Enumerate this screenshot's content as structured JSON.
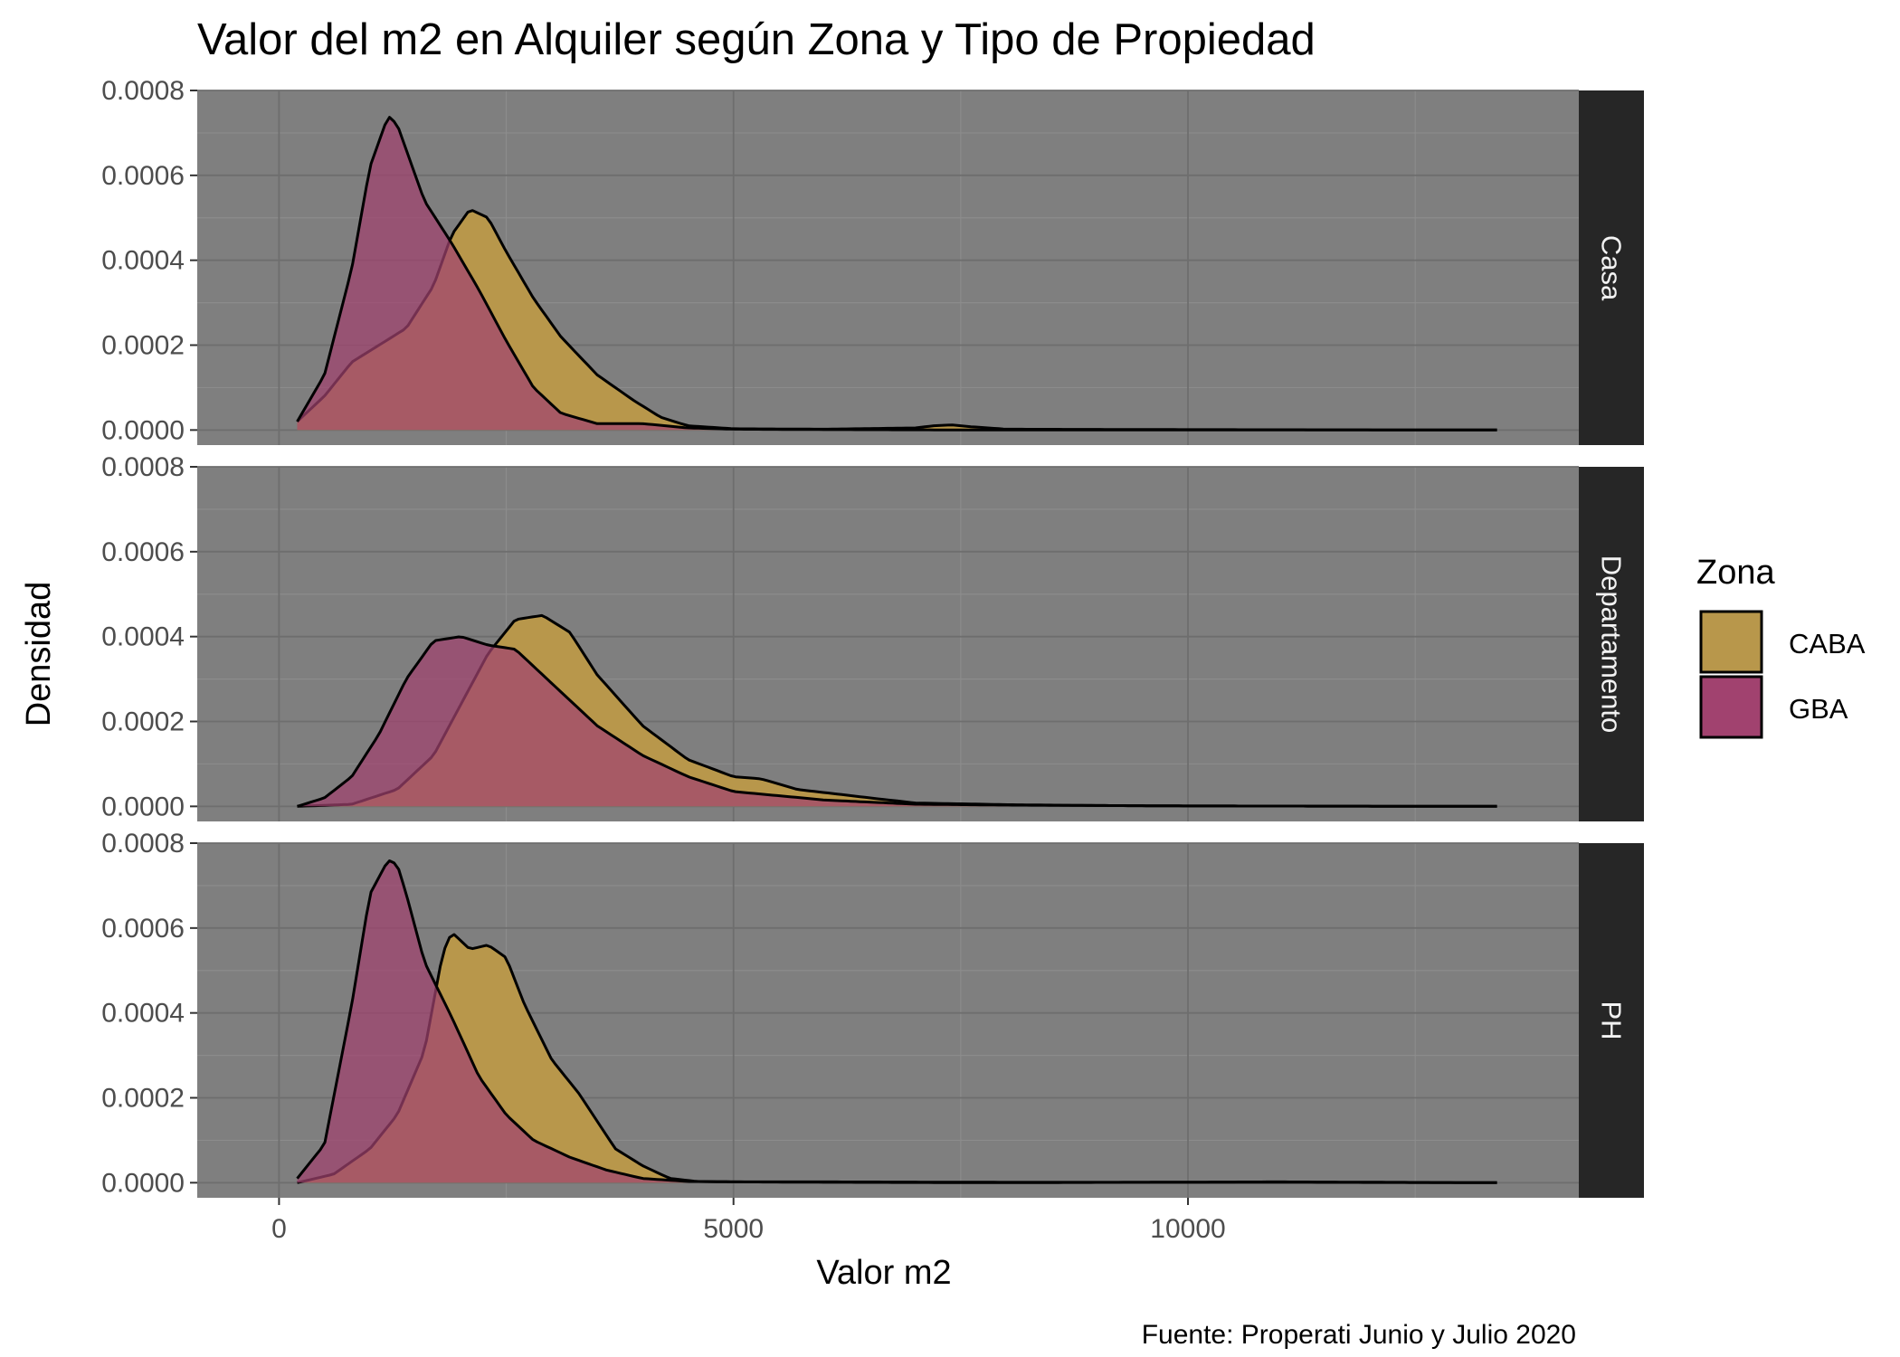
{
  "chart_data": {
    "type": "area",
    "title": "Valor del m2 en Alquiler según Zona y Tipo de Propiedad",
    "xlabel": "Valor m2",
    "ylabel": "Densidad",
    "caption": "Fuente: Properati Junio y Julio 2020",
    "xlim": [
      -900,
      14300
    ],
    "ylim": [
      -3.55e-05,
      0.0008
    ],
    "x_ticks": [
      0,
      5000,
      10000
    ],
    "x_tick_labels": [
      "0",
      "5000",
      "10000"
    ],
    "y_ticks": [
      0,
      0.0002,
      0.0004,
      0.0006,
      0.0008
    ],
    "y_tick_labels": [
      "0.0000",
      "0.0002",
      "0.0004",
      "0.0006",
      "0.0008"
    ],
    "grid": true,
    "legend": {
      "title": "Zona",
      "position": "right",
      "entries": [
        {
          "label": "CABA",
          "color": "#b8974b"
        },
        {
          "label": "GBA",
          "color": "#a1426f"
        }
      ]
    },
    "colors": {
      "panel_bg": "#7f7f7f",
      "strip_bg": "#262626",
      "CABA": "#b8974b",
      "GBA": "#a1426f",
      "overlap": "#c45866"
    },
    "facets": [
      {
        "label": "Casa",
        "series": [
          {
            "name": "CABA",
            "x": [
              200,
              500,
              800,
              1100,
              1400,
              1700,
              1900,
              2100,
              2300,
              2500,
              2800,
              3100,
              3500,
              3900,
              4200,
              4500,
              5000,
              6000,
              7000,
              7200,
              7400,
              7600,
              8000,
              10000,
              13400
            ],
            "y": [
              2e-05,
              8e-05,
              0.00016,
              0.0002,
              0.00024,
              0.00034,
              0.00046,
              0.00052,
              0.0005,
              0.00042,
              0.00031,
              0.00022,
              0.00013,
              7e-05,
              3e-05,
              1e-05,
              3e-06,
              2e-06,
              5e-06,
              1e-05,
              1.2e-05,
              8e-06,
              2e-06,
              1e-06,
              0.0
            ]
          },
          {
            "name": "GBA",
            "x": [
              200,
              500,
              800,
              1000,
              1200,
              1300,
              1400,
              1600,
              1900,
              2200,
              2500,
              2800,
              3100,
              3500,
              4000,
              4500,
              5000,
              6000,
              8000,
              10000,
              13400
            ],
            "y": [
              2e-05,
              0.00013,
              0.00038,
              0.00062,
              0.00074,
              0.00072,
              0.00066,
              0.00054,
              0.00044,
              0.00033,
              0.00021,
              0.0001,
              4e-05,
              1.5e-05,
              1.5e-05,
              5e-06,
              2e-06,
              1e-06,
              0.0,
              0.0,
              0.0
            ]
          }
        ]
      },
      {
        "label": "Departamento",
        "series": [
          {
            "name": "CABA",
            "x": [
              200,
              800,
              1300,
              1700,
              2000,
              2300,
              2600,
              2900,
              3200,
              3500,
              4000,
              4500,
              5000,
              5300,
              5700,
              6500,
              7000,
              8000,
              9000,
              10000,
              13400
            ],
            "y": [
              0.0,
              5e-06,
              4e-05,
              0.00012,
              0.00024,
              0.00036,
              0.00044,
              0.00045,
              0.00041,
              0.00031,
              0.00019,
              0.00011,
              7e-05,
              6.5e-05,
              4e-05,
              2e-05,
              8e-06,
              4e-06,
              2e-06,
              1e-06,
              0.0
            ]
          },
          {
            "name": "GBA",
            "x": [
              200,
              500,
              800,
              1100,
              1400,
              1700,
              2000,
              2300,
              2600,
              3000,
              3500,
              4000,
              4500,
              5000,
              5500,
              6000,
              6500,
              7000,
              8000,
              9000,
              10000,
              13400
            ],
            "y": [
              0.0,
              2e-05,
              7e-05,
              0.00017,
              0.0003,
              0.00039,
              0.0004,
              0.00038,
              0.00037,
              0.00029,
              0.00019,
              0.00012,
              7e-05,
              3.5e-05,
              2.5e-05,
              1.5e-05,
              1e-05,
              5e-06,
              3e-06,
              2e-06,
              1e-06,
              0.0
            ]
          }
        ]
      },
      {
        "label": "PH",
        "series": [
          {
            "name": "CABA",
            "x": [
              200,
              600,
              1000,
              1300,
              1600,
              1800,
              1900,
              2100,
              2300,
              2500,
              2700,
              3000,
              3300,
              3700,
              4000,
              4300,
              4600,
              5000,
              6000,
              8000,
              11000,
              13400
            ],
            "y": [
              0.0,
              2e-05,
              8e-05,
              0.00016,
              0.00031,
              0.00054,
              0.00059,
              0.00055,
              0.00056,
              0.00053,
              0.00042,
              0.00029,
              0.00021,
              8e-05,
              4e-05,
              1e-05,
              3e-06,
              2e-06,
              2e-06,
              1e-06,
              1e-06,
              0.0
            ]
          },
          {
            "name": "GBA",
            "x": [
              200,
              500,
              800,
              1000,
              1200,
              1300,
              1400,
              1600,
              1900,
              2200,
              2500,
              2800,
              3000,
              3200,
              3600,
              4000,
              4500,
              5000,
              6000,
              8000,
              11000,
              13400
            ],
            "y": [
              1e-05,
              9e-05,
              0.00042,
              0.00068,
              0.00076,
              0.00075,
              0.00068,
              0.00052,
              0.00039,
              0.00025,
              0.00016,
              0.0001,
              8e-05,
              6e-05,
              3e-05,
              1e-05,
              3e-06,
              2e-06,
              1e-06,
              0.0,
              2e-06,
              0.0
            ]
          }
        ]
      }
    ]
  }
}
